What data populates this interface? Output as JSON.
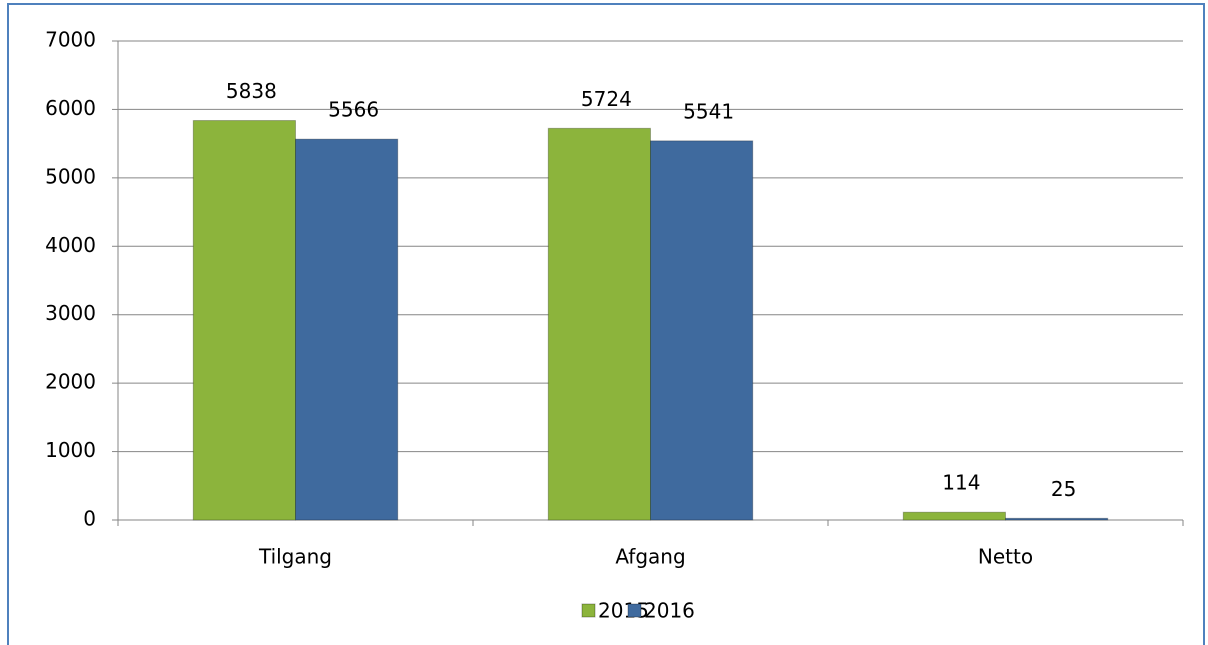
{
  "chart_data": {
    "type": "bar",
    "categories": [
      "Tilgang",
      "Afgang",
      "Netto"
    ],
    "series": [
      {
        "name": "2015",
        "color": "#8cb43c",
        "values": [
          5838,
          5724,
          114
        ]
      },
      {
        "name": "2016",
        "color": "#3f6a9e",
        "values": [
          5566,
          5541,
          25
        ]
      }
    ],
    "ylim": [
      0,
      7000
    ],
    "yticks": [
      0,
      1000,
      2000,
      3000,
      4000,
      5000,
      6000,
      7000
    ],
    "grid": true,
    "legend": "bottom"
  }
}
